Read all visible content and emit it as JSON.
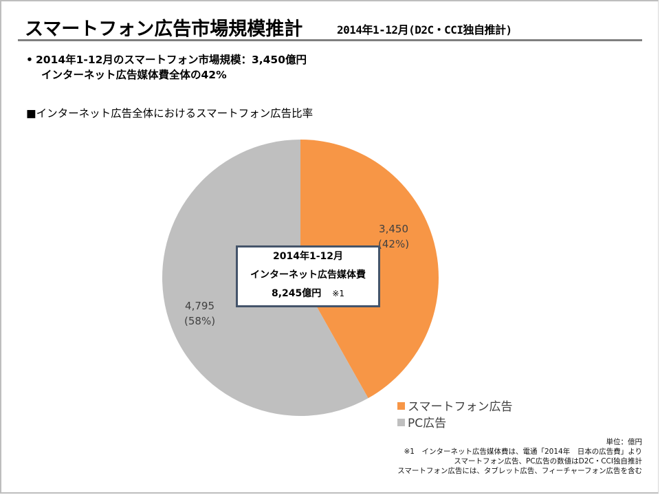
{
  "header": {
    "title": "スマートフォン広告市場規模推計",
    "subtitle": "2014年1-12月(D2C・CCI独自推計)"
  },
  "summary": {
    "bullet_symbol": "•",
    "line1": "2014年1-12月のスマートフォン市場規模：3,450億円",
    "line2": "インターネット広告媒体費全体の42%"
  },
  "section_title": "■インターネット広告全体におけるスマートフォン広告比率",
  "center_box": {
    "line1": "2014年1-12月",
    "line2": "インターネット広告媒体費",
    "line3": "8,245億円",
    "note": "※1"
  },
  "colors": {
    "smartphone": "#f79646",
    "pc": "#bfbfbf",
    "box_border": "#44546a"
  },
  "chart_data": {
    "type": "pie",
    "title": "インターネット広告全体におけるスマートフォン広告比率",
    "unit": "億円",
    "total": 8245,
    "start_angle": "12 o'clock, clockwise",
    "slices": [
      {
        "name": "スマートフォン広告",
        "value": 3450,
        "percent": 42,
        "value_label": "3,450",
        "percent_label": "(42%)",
        "color": "#f79646"
      },
      {
        "name": "PC広告",
        "value": 4795,
        "percent": 58,
        "value_label": "4,795",
        "percent_label": "(58%)",
        "color": "#bfbfbf"
      }
    ],
    "legend": [
      "スマートフォン広告",
      "PC広告"
    ],
    "legend_position": "bottom-right"
  },
  "footnotes": {
    "unit": "単位：億円",
    "note1": "※1　インターネット広告媒体費は、電通「2014年　日本の広告費」より",
    "note2": "スマートフォン広告、PC広告の数値はD2C・CCI独自推計",
    "note3": "スマートフォン広告には、タブレット広告、フィーチャーフォン広告を含む"
  }
}
